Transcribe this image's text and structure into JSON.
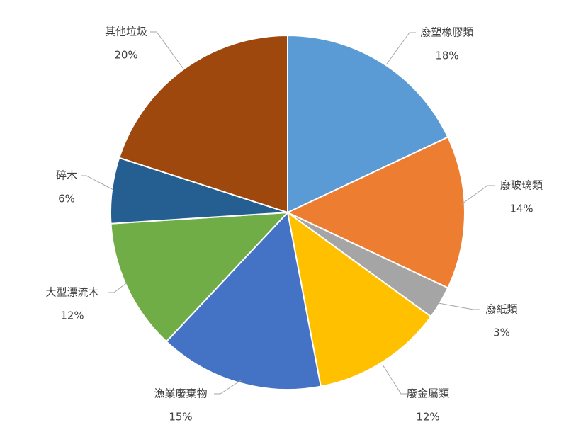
{
  "chart_data": {
    "type": "pie",
    "slices": [
      {
        "label": "廢塑橡膠類",
        "value": 18,
        "display": "18%",
        "color": "#5B9BD5"
      },
      {
        "label": "廢玻璃類",
        "value": 14,
        "display": "14%",
        "color": "#ED7D31"
      },
      {
        "label": "廢紙類",
        "value": 3,
        "display": "3%",
        "color": "#A5A5A5"
      },
      {
        "label": "廢金屬類",
        "value": 12,
        "display": "12%",
        "color": "#FFC000"
      },
      {
        "label": "漁業廢棄物",
        "value": 15,
        "display": "15%",
        "color": "#4472C4"
      },
      {
        "label": "大型漂流木",
        "value": 12,
        "display": "12%",
        "color": "#70AD47"
      },
      {
        "label": "碎木",
        "value": 6,
        "display": "6%",
        "color": "#255E91"
      },
      {
        "label": "其他垃圾",
        "value": 20,
        "display": "20%",
        "color": "#9E480E"
      }
    ],
    "start_angle": "12 o'clock",
    "direction": "clockwise",
    "legend": "none",
    "labels": "outside with leader lines"
  }
}
